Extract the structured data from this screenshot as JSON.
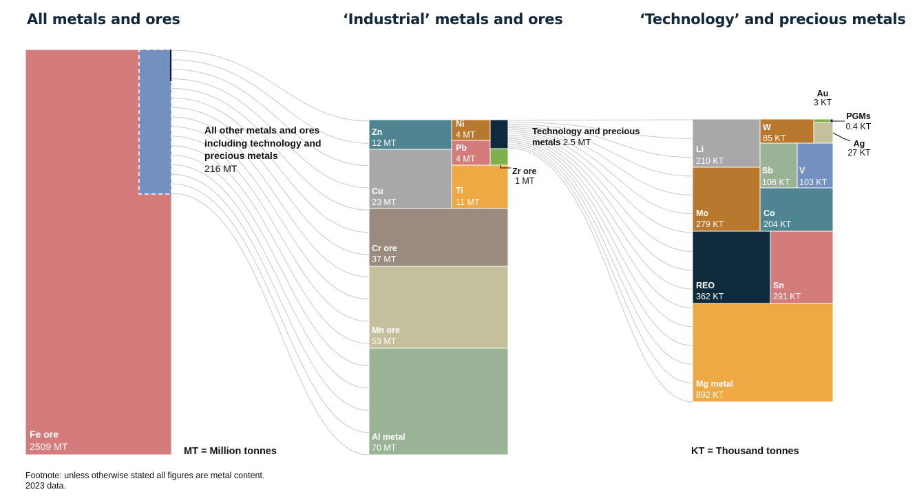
{
  "titles": {
    "all": "All metals and ores",
    "industrial": "‘Industrial’ metals and ores",
    "technology": "‘Technology’ and precious metals"
  },
  "notes": {
    "mt": "MT = Million tonnes",
    "kt": "KT = Thousand tonnes"
  },
  "footnote": {
    "line1": "Footnote: unless otherwise stated all figures are metal content.",
    "line2": "2023 data."
  },
  "annotations": {
    "other_line1": "All other metals and ores",
    "other_line2": "including technology and",
    "other_line3": "precious metals",
    "other_value": "216 MT",
    "tech_line1": "Technology and precious",
    "tech_line2a": "metals",
    "tech_value": "2.5 MT"
  },
  "colors": {
    "fe": "#d47c7c",
    "other": "#7390c0",
    "zn": "#4f8590",
    "ni": "#b8782e",
    "pb": "#d47c7c",
    "tech_box": "#0e2a3c",
    "zr": "#7fb04e",
    "cu": "#a8a8a8",
    "ti": "#eea844",
    "cr": "#9a8a80",
    "mn": "#c4c09c",
    "al": "#9ab296",
    "flow": "#c8c8c8"
  },
  "chart_data": [
    {
      "type": "treemap",
      "title": "All metals and ores",
      "unit": "MT",
      "items": [
        {
          "name": "Fe ore",
          "value": 2509,
          "label": "2509 MT"
        },
        {
          "name": "All other metals and ores including technology and precious metals",
          "value": 216,
          "label": "216 MT"
        }
      ]
    },
    {
      "type": "treemap",
      "title": "‘Industrial’ metals and ores",
      "unit": "MT",
      "items": [
        {
          "name": "Zn",
          "value": 12,
          "label": "12 MT"
        },
        {
          "name": "Ni",
          "value": 4,
          "label": "4 MT"
        },
        {
          "name": "Pb",
          "value": 4,
          "label": "4 MT"
        },
        {
          "name": "Cu",
          "value": 23,
          "label": "23 MT"
        },
        {
          "name": "Ti",
          "value": 11,
          "label": "11 MT"
        },
        {
          "name": "Zr ore",
          "value": 1,
          "label": "1  MT"
        },
        {
          "name": "Cr ore",
          "value": 37,
          "label": "37 MT"
        },
        {
          "name": "Mn ore",
          "value": 53,
          "label": "53 MT"
        },
        {
          "name": "Al metal",
          "value": 70,
          "label": "70 MT"
        },
        {
          "name": "Technology and precious metals",
          "value": 2.5,
          "label": "2.5 MT"
        }
      ]
    },
    {
      "type": "treemap",
      "title": "‘Technology’ and precious metals",
      "unit": "KT",
      "items": [
        {
          "name": "Li",
          "value": 210,
          "label": "210 KT"
        },
        {
          "name": "W",
          "value": 85,
          "label": "85 KT"
        },
        {
          "name": "Au",
          "value": 3,
          "label": "3 KT"
        },
        {
          "name": "PGMs",
          "value": 0.4,
          "label": "0.4 KT"
        },
        {
          "name": "Ag",
          "value": 27,
          "label": "27 KT"
        },
        {
          "name": "Sb",
          "value": 108,
          "label": "108 KT"
        },
        {
          "name": "V",
          "value": 103,
          "label": "103 KT"
        },
        {
          "name": "Mo",
          "value": 279,
          "label": "279 KT"
        },
        {
          "name": "Co",
          "value": 204,
          "label": "204 KT"
        },
        {
          "name": "REO",
          "value": 362,
          "label": "362 KT"
        },
        {
          "name": "Sn",
          "value": 291,
          "label": "291 KT"
        },
        {
          "name": "Mg metal",
          "value": 892,
          "label": "892 KT"
        }
      ]
    }
  ]
}
